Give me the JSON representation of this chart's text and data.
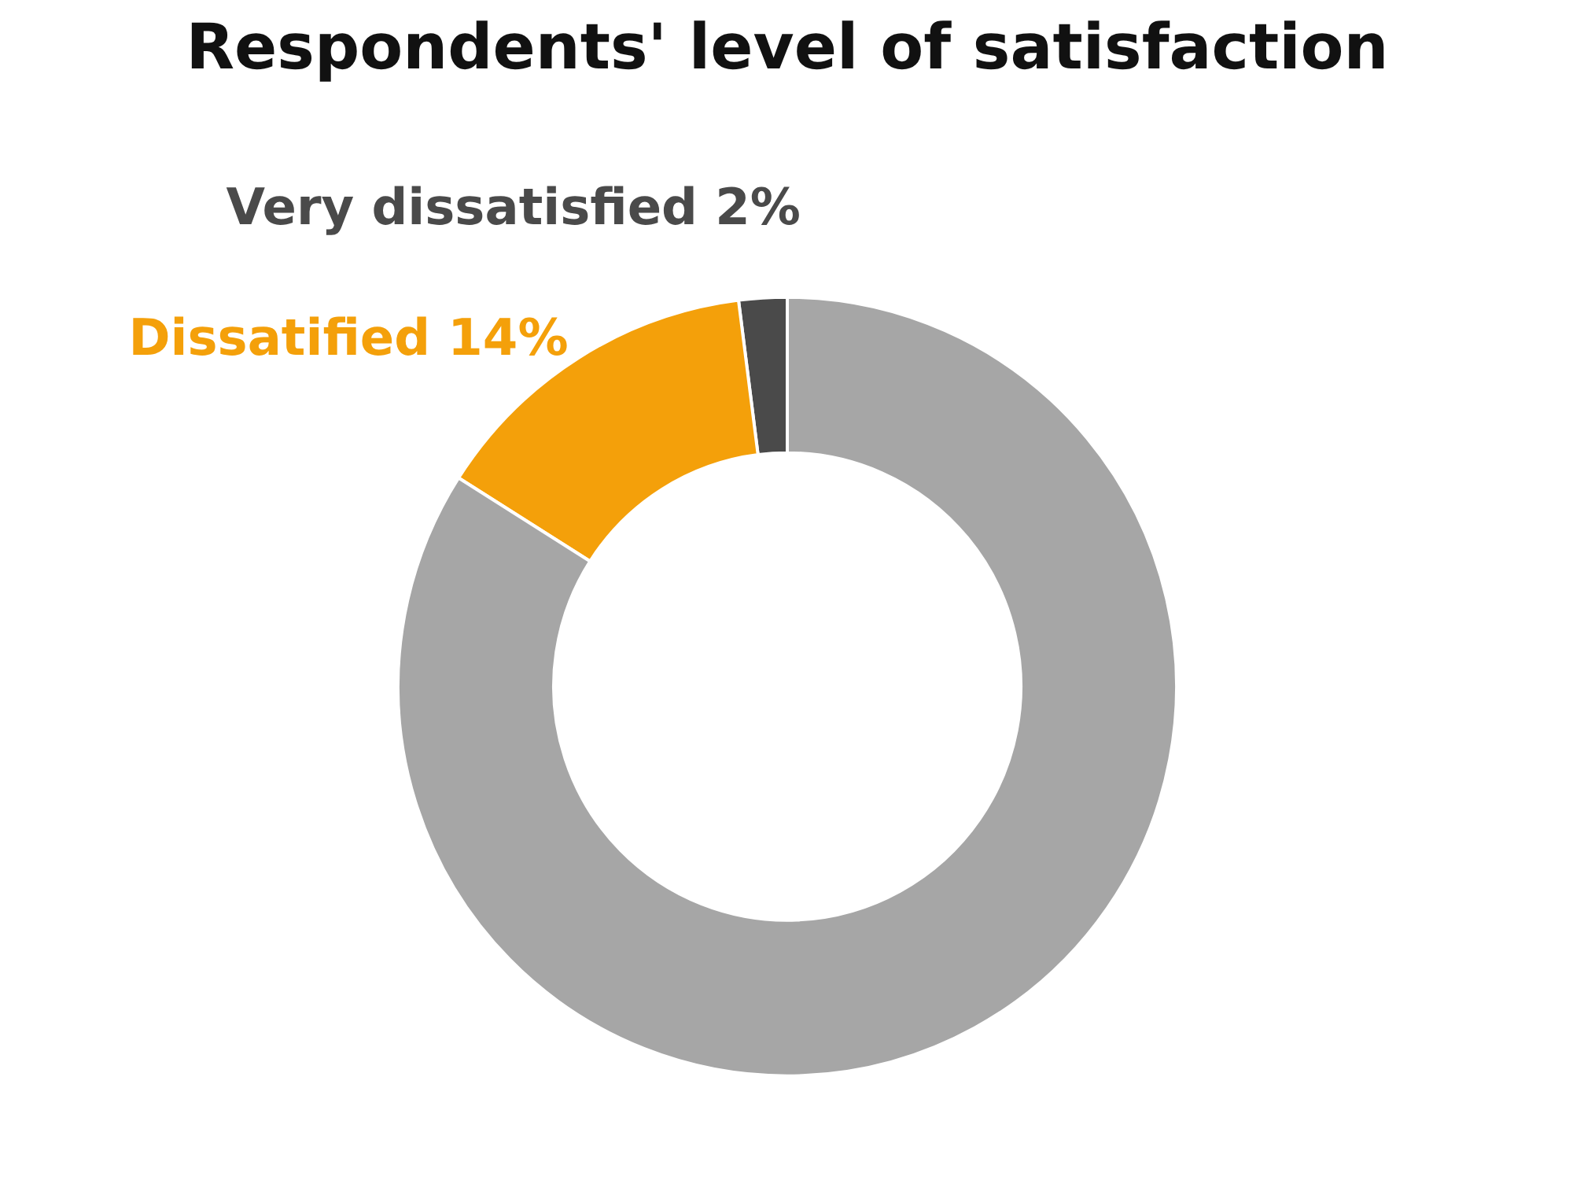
{
  "chart_data": {
    "type": "donut",
    "title": "Respondents' level of satisfaction",
    "categories": [
      "Very dissatisfied",
      "Dissatified",
      null
    ],
    "values": [
      2,
      14,
      84
    ],
    "colors": [
      "#4a4a4a",
      "#f4a00a",
      "#a6a6a6"
    ],
    "value_labels": [
      "2%",
      "14%",
      null
    ],
    "legend": false
  }
}
